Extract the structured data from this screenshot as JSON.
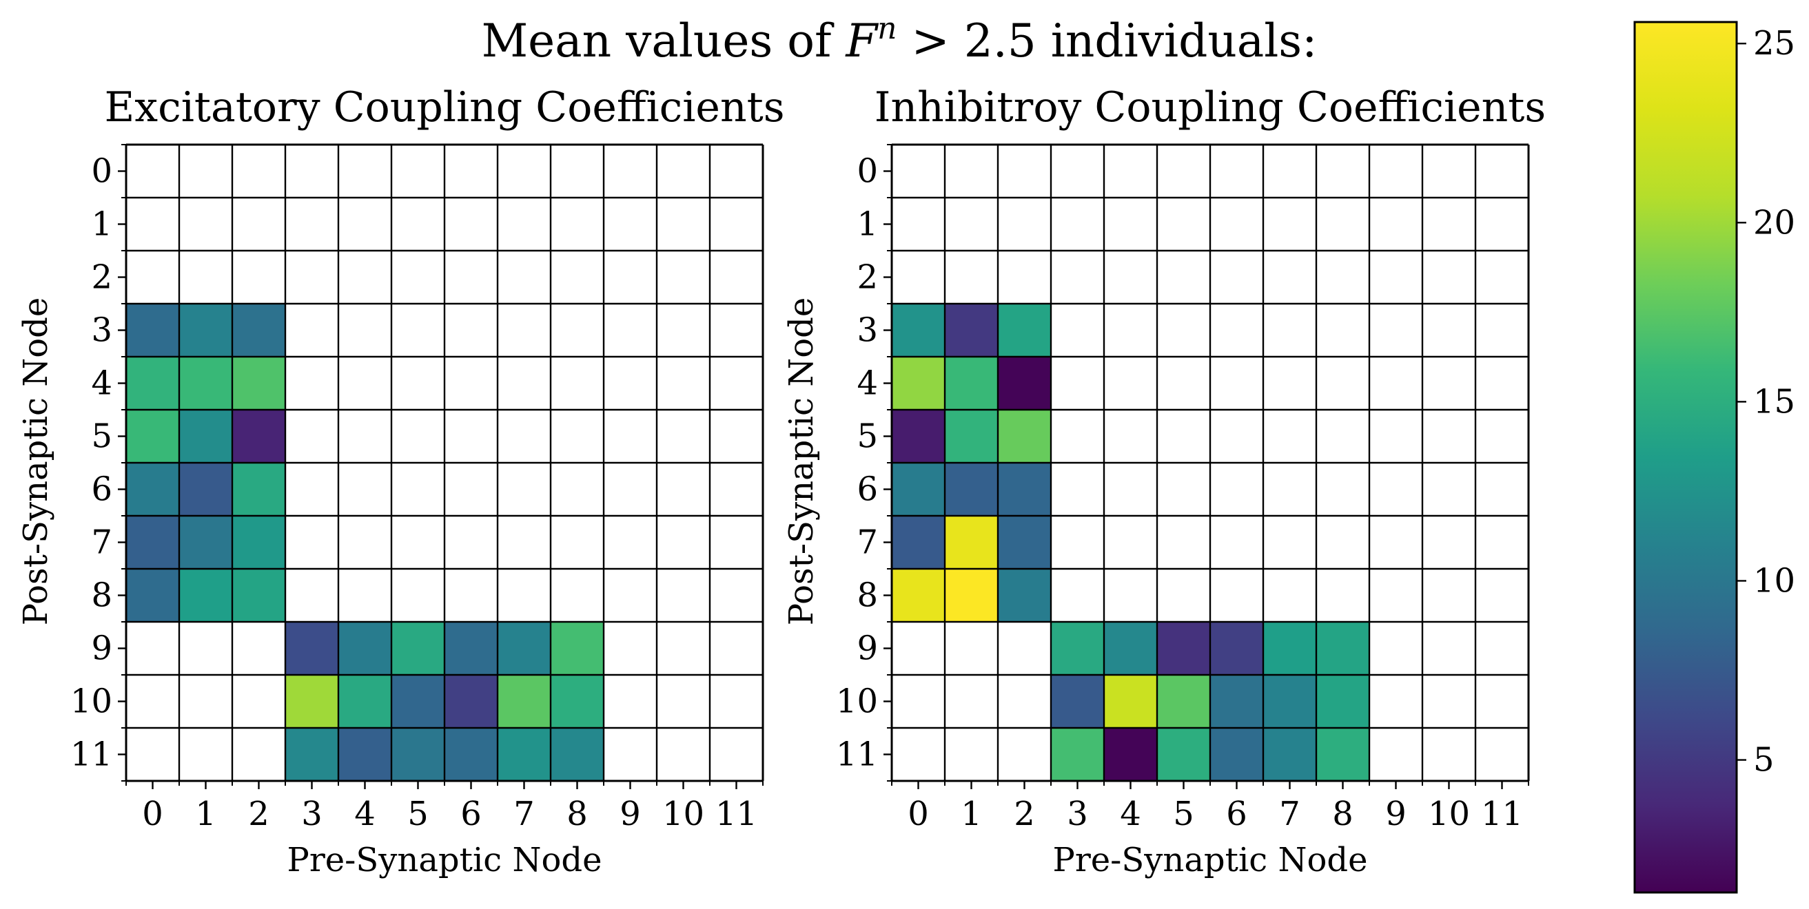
{
  "figure": {
    "suptitle_prefix": "Mean values of ",
    "suptitle_var": "F",
    "suptitle_sup": "n",
    "suptitle_suffix": " > 2.5 individuals:"
  },
  "colorbar": {
    "ticks": [
      5,
      10,
      15,
      20,
      25
    ],
    "vmin": 1.3,
    "vmax": 25.6,
    "colormap": "viridis"
  },
  "chart_data": [
    {
      "type": "heatmap",
      "title": "Excitatory Coupling Coefficients",
      "xlabel": "Pre-Synaptic Node",
      "ylabel": "Post-Synaptic Node",
      "x_ticks": [
        "0",
        "1",
        "2",
        "3",
        "4",
        "5",
        "6",
        "7",
        "8",
        "9",
        "10",
        "11"
      ],
      "y_ticks": [
        "0",
        "1",
        "2",
        "3",
        "4",
        "5",
        "6",
        "7",
        "8",
        "9",
        "10",
        "11"
      ],
      "grid": true,
      "values": [
        [
          null,
          null,
          null,
          null,
          null,
          null,
          null,
          null,
          null,
          null,
          null,
          null
        ],
        [
          null,
          null,
          null,
          null,
          null,
          null,
          null,
          null,
          null,
          null,
          null,
          null
        ],
        [
          null,
          null,
          null,
          null,
          null,
          null,
          null,
          null,
          null,
          null,
          null,
          null
        ],
        [
          9.0,
          11.0,
          9.5,
          null,
          null,
          null,
          null,
          null,
          null,
          null,
          null,
          null
        ],
        [
          15.5,
          16.0,
          17.0,
          null,
          null,
          null,
          null,
          null,
          null,
          null,
          null,
          null
        ],
        [
          16.0,
          12.0,
          3.5,
          null,
          null,
          null,
          null,
          null,
          null,
          null,
          null,
          null
        ],
        [
          10.5,
          7.5,
          14.5,
          null,
          null,
          null,
          null,
          null,
          null,
          null,
          null,
          null
        ],
        [
          8.0,
          10.0,
          13.0,
          null,
          null,
          null,
          null,
          null,
          null,
          null,
          null,
          null
        ],
        [
          9.0,
          13.5,
          14.0,
          null,
          null,
          null,
          null,
          null,
          null,
          null,
          null,
          null
        ],
        [
          null,
          null,
          null,
          6.5,
          10.5,
          14.5,
          9.0,
          11.0,
          16.5,
          null,
          null,
          null
        ],
        [
          null,
          null,
          null,
          20.0,
          14.5,
          8.5,
          5.5,
          17.5,
          15.0,
          null,
          null,
          null
        ],
        [
          null,
          null,
          null,
          11.5,
          8.0,
          10.0,
          9.0,
          12.5,
          11.5,
          null,
          null,
          null
        ]
      ]
    },
    {
      "type": "heatmap",
      "title": "Inhibitroy Coupling Coefficients",
      "xlabel": "Pre-Synaptic Node",
      "ylabel": "Post-Synaptic Node",
      "x_ticks": [
        "0",
        "1",
        "2",
        "3",
        "4",
        "5",
        "6",
        "7",
        "8",
        "9",
        "10",
        "11"
      ],
      "y_ticks": [
        "0",
        "1",
        "2",
        "3",
        "4",
        "5",
        "6",
        "7",
        "8",
        "9",
        "10",
        "11"
      ],
      "grid": true,
      "values": [
        [
          null,
          null,
          null,
          null,
          null,
          null,
          null,
          null,
          null,
          null,
          null,
          null
        ],
        [
          null,
          null,
          null,
          null,
          null,
          null,
          null,
          null,
          null,
          null,
          null,
          null
        ],
        [
          null,
          null,
          null,
          null,
          null,
          null,
          null,
          null,
          null,
          null,
          null,
          null
        ],
        [
          12.5,
          5.0,
          14.0,
          null,
          null,
          null,
          null,
          null,
          null,
          null,
          null,
          null
        ],
        [
          19.5,
          16.0,
          1.5,
          null,
          null,
          null,
          null,
          null,
          null,
          null,
          null,
          null
        ],
        [
          3.0,
          15.5,
          18.0,
          null,
          null,
          null,
          null,
          null,
          null,
          null,
          null,
          null
        ],
        [
          10.5,
          8.0,
          8.5,
          null,
          null,
          null,
          null,
          null,
          null,
          null,
          null,
          null
        ],
        [
          7.5,
          24.0,
          8.5,
          null,
          null,
          null,
          null,
          null,
          null,
          null,
          null,
          null
        ],
        [
          24.0,
          25.5,
          10.5,
          null,
          null,
          null,
          null,
          null,
          null,
          null,
          null,
          null
        ],
        [
          null,
          null,
          null,
          14.5,
          11.5,
          4.5,
          5.5,
          13.5,
          14.0,
          null,
          null,
          null
        ],
        [
          null,
          null,
          null,
          7.5,
          22.0,
          17.5,
          9.5,
          11.0,
          14.0,
          null,
          null,
          null
        ],
        [
          null,
          null,
          null,
          16.5,
          1.5,
          15.0,
          9.0,
          11.0,
          15.0,
          null,
          null,
          null
        ]
      ]
    }
  ]
}
